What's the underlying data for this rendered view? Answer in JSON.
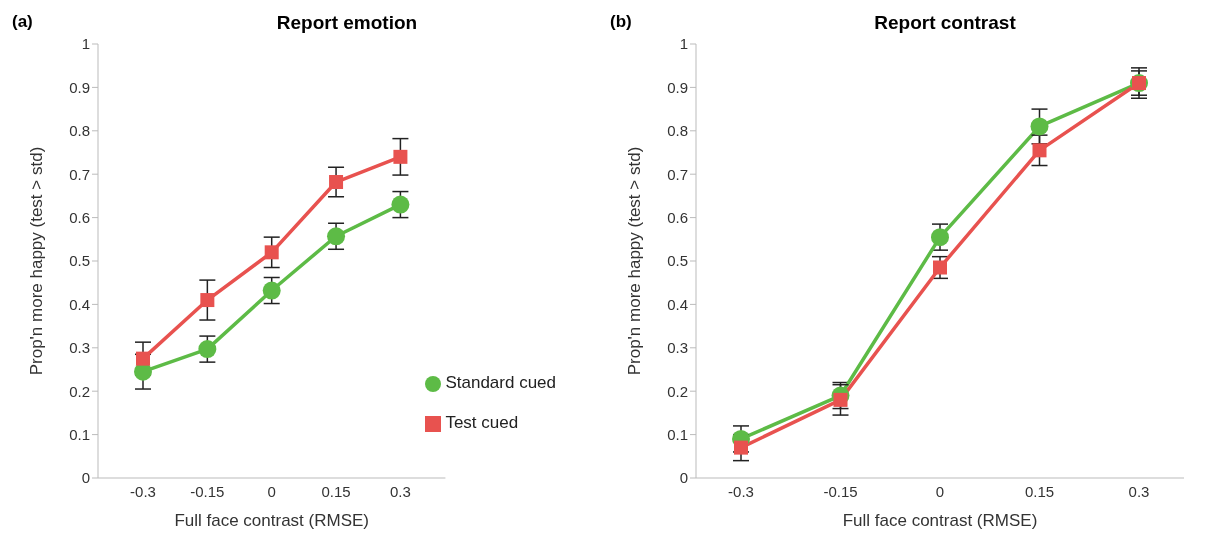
{
  "chart_data": [
    {
      "type": "line",
      "title": "Report emotion",
      "annotations": [
        "(a)"
      ],
      "xlabel": "Full face contrast (RMSE)",
      "ylabel": "Prop'n more happy (test > std)",
      "categories": [
        "-0.3",
        "-0.15",
        "0",
        "0.15",
        "0.3"
      ],
      "ylim": [
        0,
        1
      ],
      "yticks": [
        0,
        0.1,
        0.2,
        0.3,
        0.4,
        0.5,
        0.6,
        0.7,
        0.8,
        0.9,
        1
      ],
      "grid": false,
      "legend": "bottom right",
      "line_style": "solid",
      "series": [
        {
          "name": "Standard cued",
          "color": "#5dbb46",
          "marker": "circle",
          "values": [
            0.245,
            0.297,
            0.432,
            0.557,
            0.63
          ],
          "errors": [
            0.04,
            0.03,
            0.03,
            0.03,
            0.03
          ]
        },
        {
          "name": "Test cued",
          "color": "#e8524f",
          "marker": "square",
          "values": [
            0.275,
            0.41,
            0.52,
            0.682,
            0.74
          ],
          "errors": [
            0.038,
            0.046,
            0.035,
            0.034,
            0.042
          ]
        }
      ]
    },
    {
      "type": "line",
      "title": "Report contrast",
      "annotations": [
        "(b)"
      ],
      "xlabel": "Full face contrast (RMSE)",
      "ylabel": "Prop'n more happy (test > std)",
      "categories": [
        "-0.3",
        "-0.15",
        "0",
        "0.15",
        "0.3"
      ],
      "ylim": [
        0,
        1
      ],
      "yticks": [
        0,
        0.1,
        0.2,
        0.3,
        0.4,
        0.5,
        0.6,
        0.7,
        0.8,
        0.9,
        1
      ],
      "grid": false,
      "line_style": "solid",
      "series": [
        {
          "color": "#5dbb46",
          "marker": "circle",
          "values": [
            0.09,
            0.19,
            0.555,
            0.81,
            0.91
          ],
          "errors": [
            0.03,
            0.03,
            0.03,
            0.04,
            0.035
          ]
        },
        {
          "color": "#e8524f",
          "marker": "square",
          "values": [
            0.07,
            0.18,
            0.485,
            0.755,
            0.91
          ],
          "errors": [
            0.03,
            0.035,
            0.025,
            0.035,
            0.028
          ]
        }
      ]
    }
  ]
}
